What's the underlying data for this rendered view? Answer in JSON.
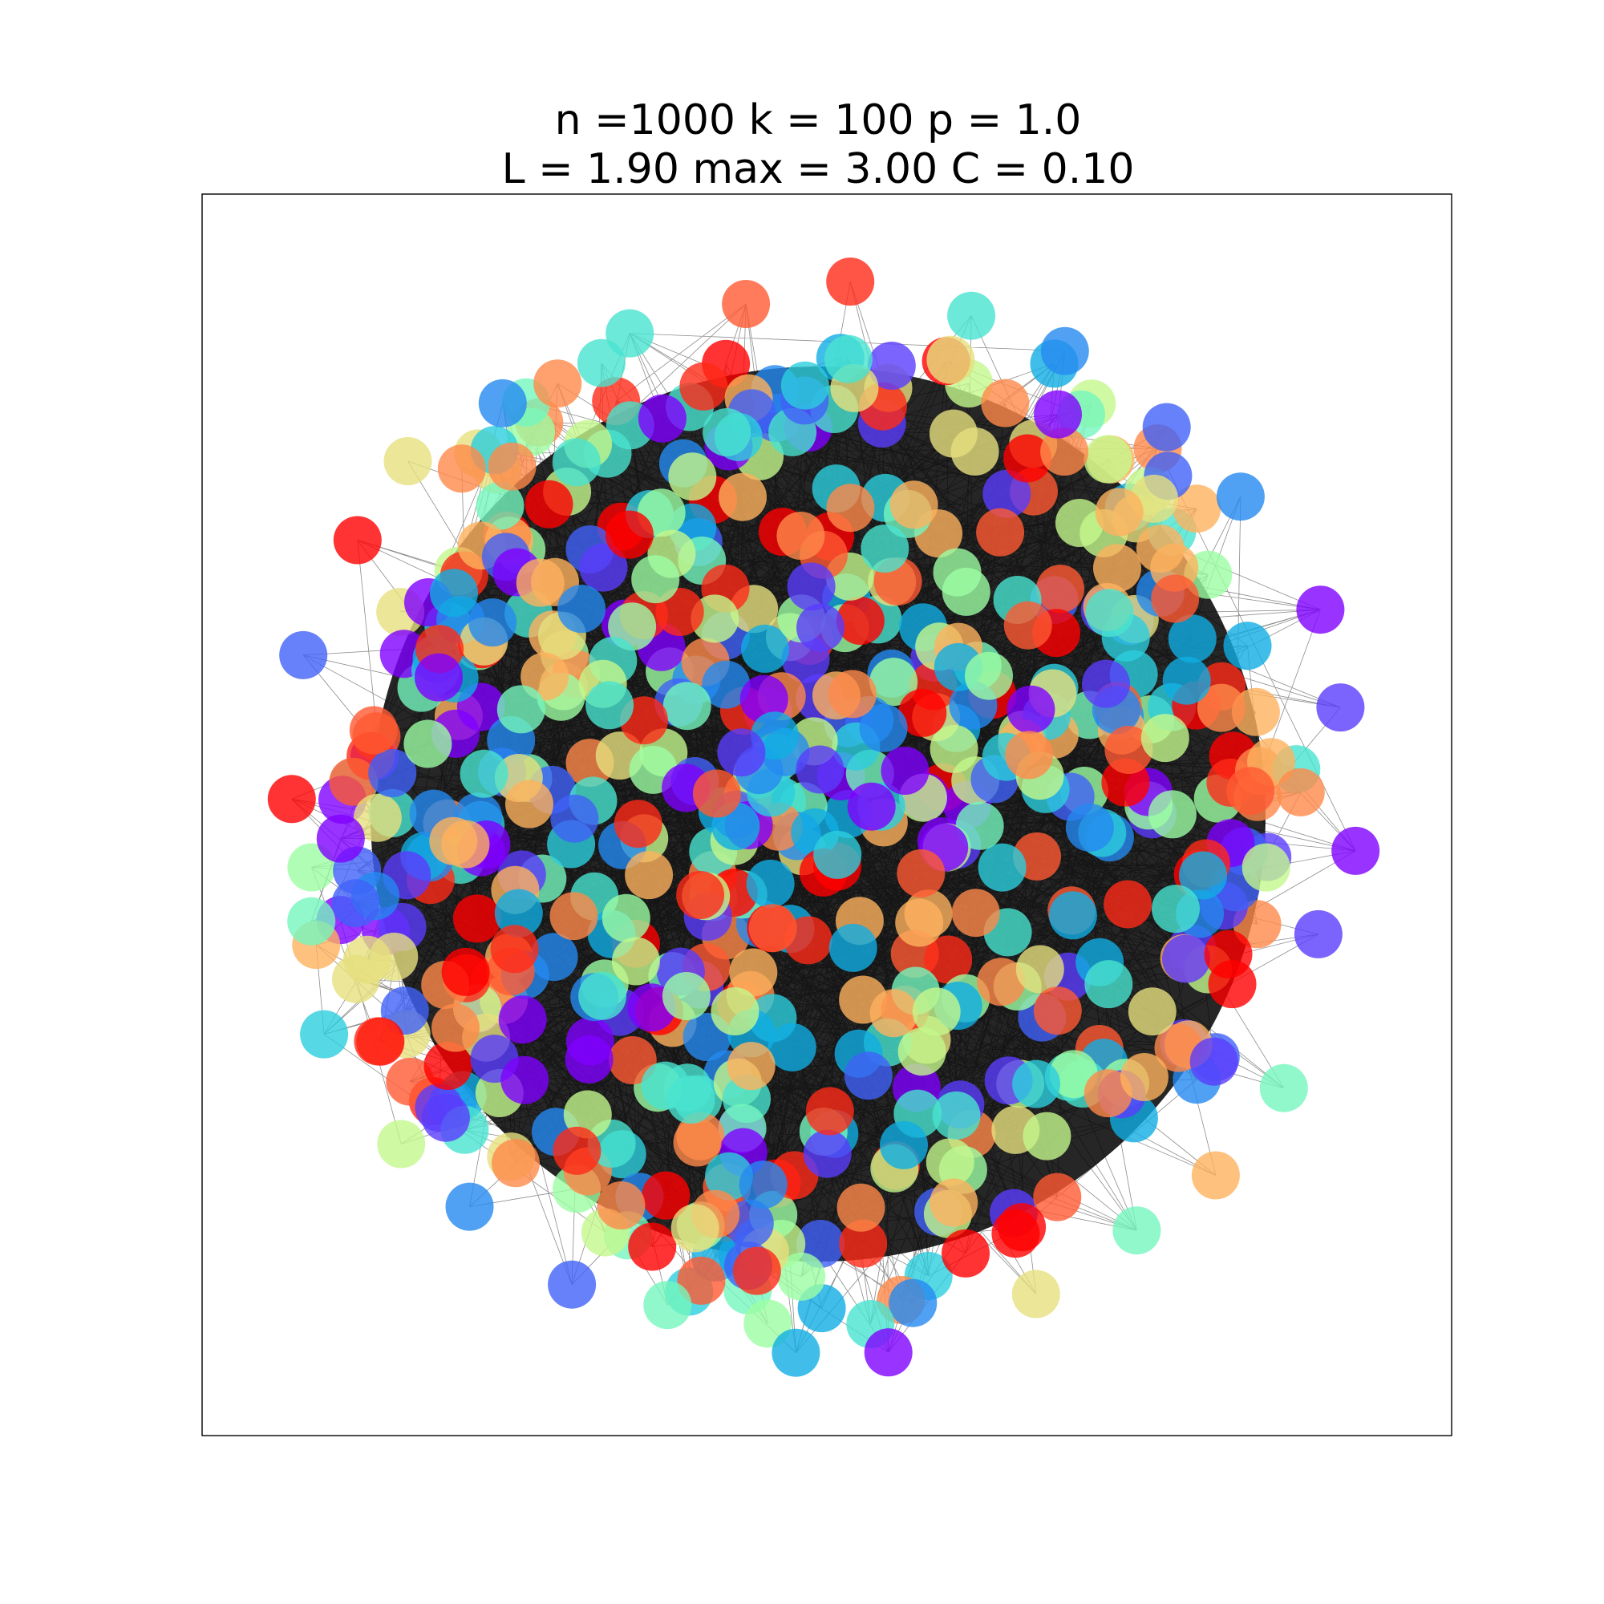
{
  "figure": {
    "title_line1": "n =1000 k = 100 p = 1.0",
    "title_line2": "L = 1.90 max = 3.00 C = 0.10"
  },
  "chart_data": {
    "type": "network-graph",
    "nodes": 1000,
    "k": 100,
    "p": 1.0,
    "L": 1.9,
    "max": 3.0,
    "C": 0.1,
    "layout": "circular blob (spring layout)",
    "node_colormap": "rainbow",
    "node_alpha": 0.8,
    "edge_color": "#000000",
    "axes_ticks": false
  },
  "colors": {
    "edge": "#000000",
    "frame": "#000000",
    "background": "#ffffff",
    "palette": [
      "#7f00ff",
      "#5a3cfd",
      "#4062f7",
      "#2489f0",
      "#10aee4",
      "#2ccede",
      "#48e4cf",
      "#74f6bd",
      "#9cfea4",
      "#c4f88c",
      "#e6e07e",
      "#feb25e",
      "#ff8a4a",
      "#ff5a32",
      "#ff2a18",
      "#ff0000"
    ]
  }
}
